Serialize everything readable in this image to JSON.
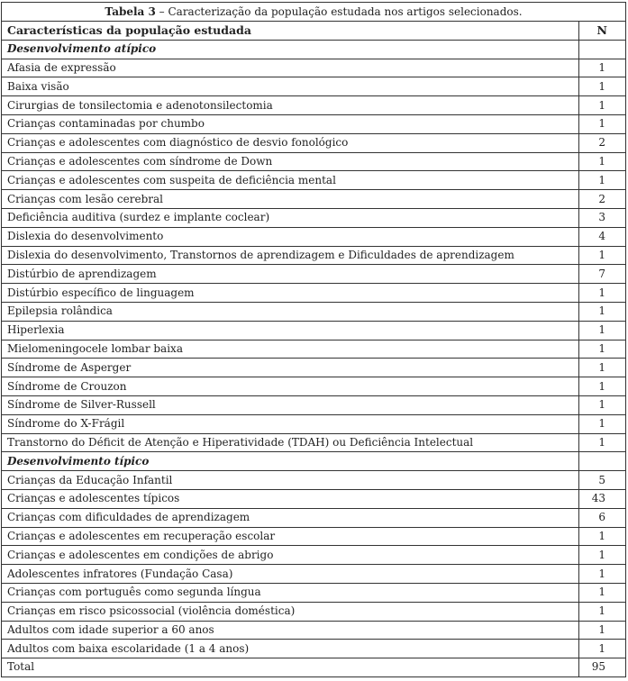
{
  "title_label": "Tabela 3",
  "title_text": " – Caracterização da população estudada nos artigos selecionados.",
  "header": {
    "col1": "Características da população estudada",
    "col2": "N"
  },
  "sections": [
    {
      "label": "Desenvolvimento atípico",
      "rows": [
        {
          "label": "Afasia de expressão",
          "n": "1"
        },
        {
          "label": "Baixa visão",
          "n": "1"
        },
        {
          "label": "Cirurgias de tonsilectomia e adenotonsilectomia",
          "n": "1"
        },
        {
          "label": "Crianças contaminadas por chumbo",
          "n": "1"
        },
        {
          "label": "Crianças e adolescentes com diagnóstico de desvio fonológico",
          "n": "2"
        },
        {
          "label": "Crianças e adolescentes com síndrome de Down",
          "n": "1"
        },
        {
          "label": "Crianças e adolescentes com suspeita de deficiência mental",
          "n": "1"
        },
        {
          "label": "Crianças com lesão cerebral",
          "n": "2"
        },
        {
          "label": "Deficiência auditiva (surdez e implante coclear)",
          "n": "3"
        },
        {
          "label": "Dislexia do desenvolvimento",
          "n": "4"
        },
        {
          "label": "Dislexia do desenvolvimento, Transtornos de aprendizagem e Dificuldades de aprendizagem",
          "n": "1"
        },
        {
          "label": "Distúrbio de aprendizagem",
          "n": "7"
        },
        {
          "label": "Distúrbio específico de linguagem",
          "n": "1"
        },
        {
          "label": "Epilepsia rolândica",
          "n": "1"
        },
        {
          "label": "Hiperlexia",
          "n": "1"
        },
        {
          "label": "Mielomeningocele lombar baixa",
          "n": "1"
        },
        {
          "label": "Síndrome de Asperger",
          "n": "1"
        },
        {
          "label": "Síndrome de Crouzon",
          "n": "1"
        },
        {
          "label": "Síndrome de Silver-Russell",
          "n": "1"
        },
        {
          "label": "Síndrome do X-Frágil",
          "n": "1"
        },
        {
          "label": "Transtorno do Déficit de Atenção e Hiperatividade (TDAH) ou Deficiência Intelectual",
          "n": "1"
        }
      ]
    },
    {
      "label": "Desenvolvimento típico",
      "rows": [
        {
          "label": "Crianças da Educação Infantil",
          "n": "5"
        },
        {
          "label": "Crianças e adolescentes típicos",
          "n": "43"
        },
        {
          "label": "Crianças com dificuldades de aprendizagem",
          "n": "6"
        },
        {
          "label": "Crianças e adolescentes em recuperação escolar",
          "n": "1"
        },
        {
          "label": "Crianças e adolescentes em condições de abrigo",
          "n": "1"
        },
        {
          "label": "Adolescentes infratores (Fundação Casa)",
          "n": "1"
        },
        {
          "label": "Crianças com português como segunda língua",
          "n": "1"
        },
        {
          "label": "Crianças em risco psicossocial (violência doméstica)",
          "n": "1"
        },
        {
          "label": "Adultos com idade superior a 60 anos",
          "n": "1"
        },
        {
          "label": "Adultos com baixa escolaridade (1 a 4 anos)",
          "n": "1"
        }
      ]
    }
  ],
  "total": {
    "label": "Total",
    "n": "95"
  }
}
